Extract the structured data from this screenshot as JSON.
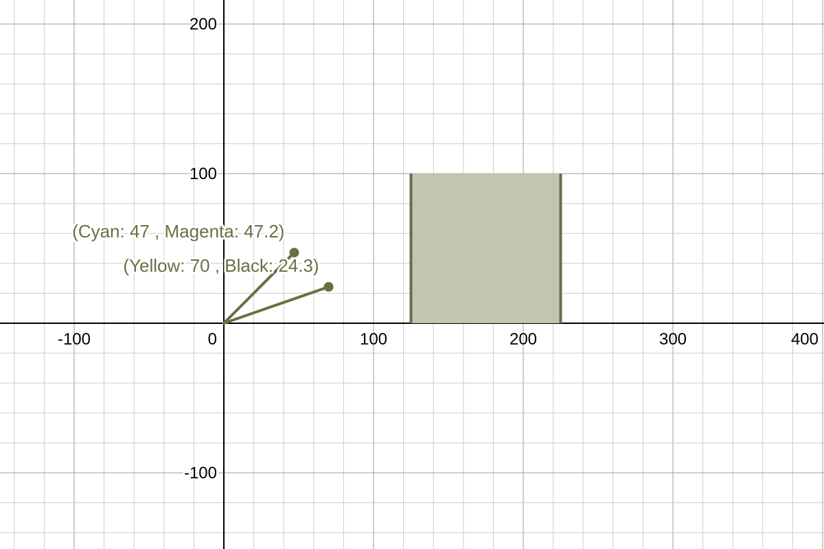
{
  "chart_data": {
    "type": "scatter",
    "title": "",
    "xlabel": "",
    "ylabel": "",
    "xlim": [
      -150,
      400
    ],
    "ylim": [
      -150,
      215
    ],
    "grid": true,
    "x_ticks": [
      -100,
      0,
      100,
      200,
      300,
      400
    ],
    "y_ticks": [
      200,
      100,
      -100
    ],
    "x_tick_labels": [
      "-100",
      "0",
      "100",
      "200",
      "300",
      "400"
    ],
    "y_tick_labels": [
      "200",
      "100",
      "-100"
    ],
    "color": "#6d6d44",
    "fill_color": "#c0c1ae",
    "rectangle": {
      "x_start": 125,
      "x_end": 225,
      "y_bottom": 0,
      "y_top": 100
    },
    "vectors": [
      {
        "x": 47,
        "y": 47.2,
        "label": "(Cyan: 47 , Magenta: 47.2)"
      },
      {
        "x": 70,
        "y": 24.3,
        "label": "(Yellow: 70 , Black: 24.3)"
      }
    ]
  }
}
